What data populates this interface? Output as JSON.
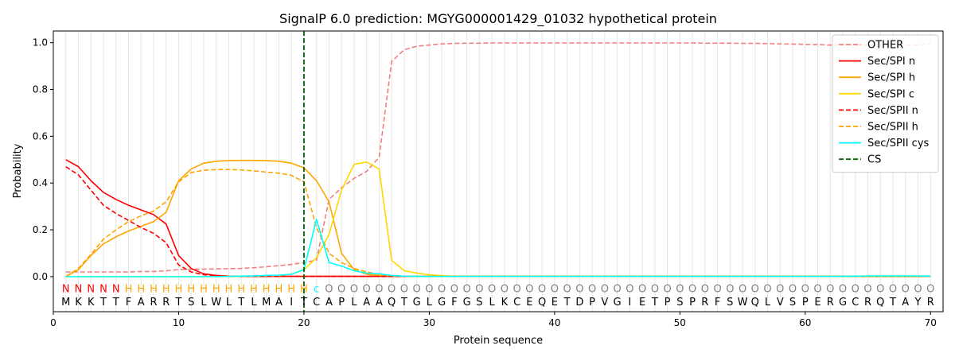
{
  "chart_data": {
    "type": "line",
    "title": "SignalP 6.0 prediction: MGYG000001429_01032 hypothetical protein",
    "xlabel": "Protein sequence",
    "ylabel": "Probability",
    "xlim": [
      0,
      71
    ],
    "ylim": [
      -0.15,
      1.05
    ],
    "xticks": [
      0,
      10,
      20,
      30,
      40,
      50,
      60,
      70
    ],
    "yticks": [
      0.0,
      0.2,
      0.4,
      0.6,
      0.8,
      1.0
    ],
    "xtick_labels": [
      "0",
      "10",
      "20",
      "30",
      "40",
      "50",
      "60",
      "70"
    ],
    "ytick_labels": [
      "0.0",
      "0.2",
      "0.4",
      "0.6",
      "0.8",
      "1.0"
    ],
    "grid": "vertical lines at every residue",
    "legend_position": "top-right",
    "cleavage_site": 20,
    "sequence": [
      "M",
      "K",
      "K",
      "T",
      "T",
      "F",
      "A",
      "R",
      "R",
      "T",
      "S",
      "L",
      "W",
      "L",
      "T",
      "L",
      "M",
      "A",
      "I",
      "T",
      "C",
      "A",
      "P",
      "L",
      "A",
      "A",
      "Q",
      "T",
      "G",
      "L",
      "G",
      "F",
      "G",
      "S",
      "L",
      "K",
      "C",
      "E",
      "Q",
      "E",
      "T",
      "D",
      "P",
      "V",
      "G",
      "I",
      "E",
      "T",
      "P",
      "S",
      "P",
      "R",
      "F",
      "S",
      "W",
      "Q",
      "L",
      "V",
      "S",
      "P",
      "E",
      "R",
      "G",
      "C",
      "R",
      "Q",
      "T",
      "A",
      "Y",
      "R"
    ],
    "region_labels": [
      "N",
      "N",
      "N",
      "N",
      "N",
      "H",
      "H",
      "H",
      "H",
      "H",
      "H",
      "H",
      "H",
      "H",
      "H",
      "H",
      "H",
      "H",
      "H",
      "H",
      "c",
      "O",
      "O",
      "O",
      "O",
      "O",
      "O",
      "O",
      "O",
      "O",
      "O",
      "O",
      "O",
      "O",
      "O",
      "O",
      "O",
      "O",
      "O",
      "O",
      "O",
      "O",
      "O",
      "O",
      "O",
      "O",
      "O",
      "O",
      "O",
      "O",
      "O",
      "O",
      "O",
      "O",
      "O",
      "O",
      "O",
      "O",
      "O",
      "O",
      "O",
      "O",
      "O",
      "O",
      "O",
      "O",
      "O",
      "O",
      "O",
      "O"
    ],
    "region_colors": {
      "N": "#ff0000",
      "H": "#ffa500",
      "c": "#00ffff",
      "O": "#808080"
    },
    "series": [
      {
        "name": "OTHER",
        "color": "#f08080",
        "dash": "dashed",
        "values": [
          0.02,
          0.02,
          0.02,
          0.02,
          0.02,
          0.02,
          0.022,
          0.022,
          0.025,
          0.03,
          0.032,
          0.032,
          0.033,
          0.034,
          0.035,
          0.038,
          0.042,
          0.047,
          0.052,
          0.06,
          0.07,
          0.33,
          0.38,
          0.42,
          0.45,
          0.51,
          0.92,
          0.97,
          0.985,
          0.99,
          0.995,
          0.997,
          0.998,
          0.998,
          0.999,
          0.999,
          0.999,
          0.999,
          0.999,
          0.999,
          0.999,
          0.999,
          0.999,
          0.999,
          0.999,
          0.999,
          0.999,
          0.999,
          0.999,
          0.999,
          0.999,
          0.998,
          0.998,
          0.998,
          0.997,
          0.997,
          0.996,
          0.995,
          0.994,
          0.993,
          0.992,
          0.99,
          0.99,
          0.99,
          0.99,
          0.99,
          0.99,
          0.99,
          0.99,
          0.995
        ]
      },
      {
        "name": "Sec/SPI n",
        "color": "#ff0000",
        "dash": "solid",
        "values": [
          0.5,
          0.47,
          0.41,
          0.36,
          0.33,
          0.305,
          0.285,
          0.265,
          0.225,
          0.09,
          0.035,
          0.012,
          0.005,
          0.002,
          0.001,
          0.001,
          0.001,
          0.001,
          0.001,
          0.001,
          0.001,
          0.001,
          0.001,
          0.001,
          0.001,
          0.001,
          0.001,
          0.001,
          0.001,
          0.001,
          0.001,
          0.001,
          0.001,
          0.001,
          0.001,
          0.001,
          0.001,
          0.001,
          0.001,
          0.001,
          0.001,
          0.001,
          0.001,
          0.001,
          0.001,
          0.001,
          0.001,
          0.001,
          0.001,
          0.001,
          0.001,
          0.001,
          0.001,
          0.001,
          0.001,
          0.001,
          0.001,
          0.001,
          0.001,
          0.001,
          0.001,
          0.001,
          0.001,
          0.001,
          0.001,
          0.001,
          0.001,
          0.001,
          0.001,
          0.001
        ]
      },
      {
        "name": "Sec/SPI h",
        "color": "#ffa500",
        "dash": "solid",
        "values": [
          0.0,
          0.03,
          0.09,
          0.14,
          0.17,
          0.195,
          0.215,
          0.235,
          0.275,
          0.41,
          0.46,
          0.485,
          0.493,
          0.496,
          0.497,
          0.497,
          0.496,
          0.493,
          0.485,
          0.465,
          0.41,
          0.32,
          0.1,
          0.03,
          0.01,
          0.005,
          0.002,
          0.001,
          0.001,
          0.001,
          0.001,
          0.001,
          0.001,
          0.001,
          0.001,
          0.001,
          0.001,
          0.001,
          0.001,
          0.001,
          0.001,
          0.001,
          0.001,
          0.001,
          0.001,
          0.001,
          0.001,
          0.001,
          0.001,
          0.001,
          0.001,
          0.001,
          0.001,
          0.001,
          0.001,
          0.001,
          0.001,
          0.001,
          0.001,
          0.001,
          0.001,
          0.001,
          0.001,
          0.001,
          0.001,
          0.001,
          0.001,
          0.001,
          0.001,
          0.001
        ]
      },
      {
        "name": "Sec/SPI c",
        "color": "#ffd700",
        "dash": "solid",
        "values": [
          0.0,
          0.0,
          0.0,
          0.0,
          0.0,
          0.0,
          0.0,
          0.0,
          0.0,
          0.0,
          0.0,
          0.0,
          0.0,
          0.0,
          0.001,
          0.002,
          0.003,
          0.004,
          0.01,
          0.03,
          0.08,
          0.18,
          0.37,
          0.48,
          0.49,
          0.46,
          0.07,
          0.025,
          0.015,
          0.008,
          0.004,
          0.002,
          0.001,
          0.001,
          0.001,
          0.001,
          0.001,
          0.001,
          0.001,
          0.001,
          0.001,
          0.001,
          0.001,
          0.001,
          0.001,
          0.001,
          0.001,
          0.001,
          0.001,
          0.001,
          0.001,
          0.001,
          0.001,
          0.001,
          0.001,
          0.001,
          0.001,
          0.001,
          0.001,
          0.001,
          0.001,
          0.001,
          0.001,
          0.001,
          0.001,
          0.001,
          0.001,
          0.001,
          0.001,
          0.001
        ]
      },
      {
        "name": "Sec/SPII n",
        "color": "#ff0000",
        "dash": "dashed",
        "values": [
          0.47,
          0.435,
          0.37,
          0.305,
          0.27,
          0.24,
          0.21,
          0.185,
          0.145,
          0.05,
          0.02,
          0.008,
          0.004,
          0.002,
          0.001,
          0.001,
          0.001,
          0.001,
          0.001,
          0.001,
          0.001,
          0.001,
          0.001,
          0.001,
          0.001,
          0.001,
          0.001,
          0.001,
          0.001,
          0.001,
          0.001,
          0.001,
          0.001,
          0.001,
          0.001,
          0.001,
          0.001,
          0.001,
          0.001,
          0.001,
          0.001,
          0.001,
          0.001,
          0.001,
          0.001,
          0.001,
          0.001,
          0.001,
          0.001,
          0.001,
          0.001,
          0.001,
          0.001,
          0.001,
          0.001,
          0.001,
          0.001,
          0.001,
          0.001,
          0.001,
          0.001,
          0.001,
          0.001,
          0.001,
          0.001,
          0.001,
          0.001,
          0.001,
          0.001,
          0.001
        ]
      },
      {
        "name": "Sec/SPII h",
        "color": "#ffa500",
        "dash": "dashed",
        "values": [
          0.0,
          0.035,
          0.095,
          0.16,
          0.2,
          0.235,
          0.26,
          0.28,
          0.32,
          0.405,
          0.445,
          0.455,
          0.458,
          0.458,
          0.456,
          0.452,
          0.447,
          0.442,
          0.433,
          0.405,
          0.21,
          0.1,
          0.06,
          0.035,
          0.02,
          0.01,
          0.005,
          0.002,
          0.001,
          0.001,
          0.001,
          0.001,
          0.001,
          0.001,
          0.001,
          0.001,
          0.001,
          0.001,
          0.001,
          0.001,
          0.001,
          0.001,
          0.001,
          0.001,
          0.001,
          0.001,
          0.001,
          0.001,
          0.001,
          0.001,
          0.001,
          0.001,
          0.001,
          0.001,
          0.001,
          0.001,
          0.001,
          0.001,
          0.001,
          0.001,
          0.001,
          0.001,
          0.001,
          0.001,
          0.001,
          0.001,
          0.001,
          0.001,
          0.001,
          0.001
        ]
      },
      {
        "name": "Sec/SPII cys",
        "color": "#00ffff",
        "dash": "solid",
        "values": [
          0.0,
          0.0,
          0.0,
          0.0,
          0.0,
          0.0,
          0.0,
          0.0,
          0.0,
          0.0,
          0.0,
          0.0,
          0.0,
          0.001,
          0.002,
          0.003,
          0.005,
          0.006,
          0.01,
          0.03,
          0.245,
          0.06,
          0.045,
          0.025,
          0.015,
          0.012,
          0.005,
          0.002,
          0.001,
          0.001,
          0.001,
          0.001,
          0.001,
          0.001,
          0.001,
          0.001,
          0.001,
          0.001,
          0.001,
          0.001,
          0.001,
          0.001,
          0.001,
          0.001,
          0.001,
          0.001,
          0.001,
          0.001,
          0.001,
          0.001,
          0.001,
          0.001,
          0.001,
          0.001,
          0.001,
          0.001,
          0.001,
          0.001,
          0.001,
          0.001,
          0.001,
          0.001,
          0.001,
          0.002,
          0.003,
          0.003,
          0.003,
          0.003,
          0.003,
          0.002
        ]
      }
    ],
    "legend_entries": [
      {
        "name": "OTHER",
        "color": "#f08080",
        "dash": "dashed"
      },
      {
        "name": "Sec/SPI n",
        "color": "#ff0000",
        "dash": "solid"
      },
      {
        "name": "Sec/SPI h",
        "color": "#ffa500",
        "dash": "solid"
      },
      {
        "name": "Sec/SPI c",
        "color": "#ffd700",
        "dash": "solid"
      },
      {
        "name": "Sec/SPII n",
        "color": "#ff0000",
        "dash": "dashed"
      },
      {
        "name": "Sec/SPII h",
        "color": "#ffa500",
        "dash": "dashed"
      },
      {
        "name": "Sec/SPII cys",
        "color": "#00ffff",
        "dash": "solid"
      },
      {
        "name": "CS",
        "color": "#006400",
        "dash": "dashed"
      }
    ]
  }
}
